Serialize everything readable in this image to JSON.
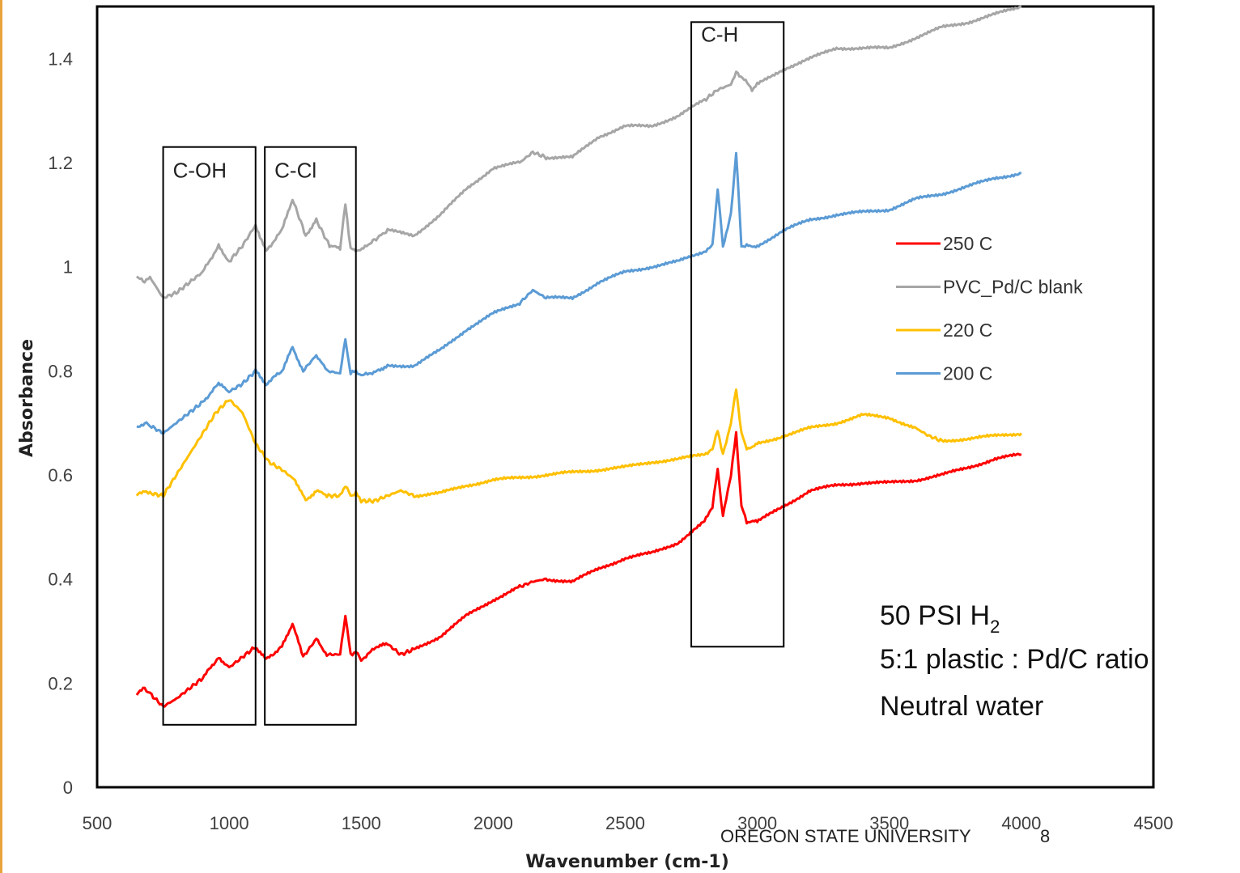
{
  "chart_data": {
    "type": "line",
    "xlabel": "Wavenumber (cm-1)",
    "ylabel": "Absorbance",
    "xlim": [
      500,
      4500
    ],
    "ylim": [
      0,
      1.5
    ],
    "xticks": [
      "500",
      "1000",
      "1500",
      "2000",
      "2500",
      "3000",
      "3500",
      "4000",
      "4500"
    ],
    "yticks": [
      "0",
      "0.2",
      "0.4",
      "0.6",
      "0.8",
      "1",
      "1.2",
      "1.4"
    ],
    "grid": false,
    "legend_position": "right",
    "series": [
      {
        "name": "250 C",
        "color": "#ff0000",
        "points": [
          [
            650,
            0.18
          ],
          [
            680,
            0.19
          ],
          [
            700,
            0.18
          ],
          [
            750,
            0.155
          ],
          [
            800,
            0.17
          ],
          [
            850,
            0.19
          ],
          [
            900,
            0.21
          ],
          [
            960,
            0.25
          ],
          [
            1000,
            0.23
          ],
          [
            1050,
            0.25
          ],
          [
            1100,
            0.27
          ],
          [
            1140,
            0.245
          ],
          [
            1200,
            0.27
          ],
          [
            1240,
            0.315
          ],
          [
            1280,
            0.25
          ],
          [
            1330,
            0.285
          ],
          [
            1370,
            0.255
          ],
          [
            1420,
            0.255
          ],
          [
            1440,
            0.33
          ],
          [
            1460,
            0.255
          ],
          [
            1480,
            0.26
          ],
          [
            1500,
            0.245
          ],
          [
            1560,
            0.27
          ],
          [
            1600,
            0.275
          ],
          [
            1650,
            0.255
          ],
          [
            1700,
            0.265
          ],
          [
            1800,
            0.29
          ],
          [
            1900,
            0.33
          ],
          [
            2000,
            0.36
          ],
          [
            2100,
            0.385
          ],
          [
            2150,
            0.395
          ],
          [
            2200,
            0.4
          ],
          [
            2300,
            0.395
          ],
          [
            2400,
            0.42
          ],
          [
            2500,
            0.44
          ],
          [
            2600,
            0.45
          ],
          [
            2700,
            0.47
          ],
          [
            2800,
            0.51
          ],
          [
            2830,
            0.54
          ],
          [
            2850,
            0.61
          ],
          [
            2870,
            0.52
          ],
          [
            2900,
            0.6
          ],
          [
            2920,
            0.68
          ],
          [
            2940,
            0.54
          ],
          [
            2960,
            0.51
          ],
          [
            3000,
            0.51
          ],
          [
            3100,
            0.54
          ],
          [
            3200,
            0.57
          ],
          [
            3300,
            0.58
          ],
          [
            3400,
            0.585
          ],
          [
            3500,
            0.585
          ],
          [
            3600,
            0.59
          ],
          [
            3700,
            0.6
          ],
          [
            3800,
            0.615
          ],
          [
            3900,
            0.63
          ],
          [
            4000,
            0.64
          ]
        ]
      },
      {
        "name": "PVC_Pd/C blank",
        "color": "#a6a6a6",
        "points": [
          [
            650,
            0.98
          ],
          [
            680,
            0.97
          ],
          [
            700,
            0.98
          ],
          [
            750,
            0.94
          ],
          [
            800,
            0.95
          ],
          [
            850,
            0.97
          ],
          [
            900,
            0.99
          ],
          [
            960,
            1.04
          ],
          [
            1000,
            1.01
          ],
          [
            1050,
            1.04
          ],
          [
            1100,
            1.08
          ],
          [
            1140,
            1.03
          ],
          [
            1200,
            1.07
          ],
          [
            1240,
            1.13
          ],
          [
            1290,
            1.06
          ],
          [
            1330,
            1.09
          ],
          [
            1380,
            1.04
          ],
          [
            1420,
            1.035
          ],
          [
            1440,
            1.12
          ],
          [
            1460,
            1.035
          ],
          [
            1480,
            1.03
          ],
          [
            1520,
            1.04
          ],
          [
            1600,
            1.07
          ],
          [
            1700,
            1.06
          ],
          [
            1800,
            1.1
          ],
          [
            1900,
            1.15
          ],
          [
            2000,
            1.19
          ],
          [
            2100,
            1.2
          ],
          [
            2150,
            1.22
          ],
          [
            2200,
            1.21
          ],
          [
            2300,
            1.21
          ],
          [
            2400,
            1.25
          ],
          [
            2500,
            1.27
          ],
          [
            2600,
            1.27
          ],
          [
            2700,
            1.29
          ],
          [
            2800,
            1.32
          ],
          [
            2850,
            1.34
          ],
          [
            2900,
            1.35
          ],
          [
            2920,
            1.375
          ],
          [
            2950,
            1.36
          ],
          [
            2980,
            1.34
          ],
          [
            3000,
            1.35
          ],
          [
            3100,
            1.38
          ],
          [
            3200,
            1.4
          ],
          [
            3300,
            1.42
          ],
          [
            3400,
            1.42
          ],
          [
            3500,
            1.42
          ],
          [
            3600,
            1.44
          ],
          [
            3700,
            1.46
          ],
          [
            3800,
            1.47
          ],
          [
            3900,
            1.485
          ],
          [
            4000,
            1.5
          ]
        ]
      },
      {
        "name": "220 C",
        "color": "#ffc000",
        "points": [
          [
            650,
            0.56
          ],
          [
            680,
            0.57
          ],
          [
            700,
            0.565
          ],
          [
            750,
            0.56
          ],
          [
            800,
            0.6
          ],
          [
            850,
            0.64
          ],
          [
            900,
            0.68
          ],
          [
            950,
            0.72
          ],
          [
            1000,
            0.745
          ],
          [
            1050,
            0.72
          ],
          [
            1100,
            0.66
          ],
          [
            1150,
            0.625
          ],
          [
            1200,
            0.61
          ],
          [
            1250,
            0.59
          ],
          [
            1290,
            0.55
          ],
          [
            1330,
            0.57
          ],
          [
            1370,
            0.56
          ],
          [
            1420,
            0.56
          ],
          [
            1440,
            0.58
          ],
          [
            1460,
            0.56
          ],
          [
            1480,
            0.565
          ],
          [
            1500,
            0.55
          ],
          [
            1550,
            0.55
          ],
          [
            1600,
            0.56
          ],
          [
            1650,
            0.57
          ],
          [
            1700,
            0.56
          ],
          [
            1800,
            0.565
          ],
          [
            1900,
            0.58
          ],
          [
            2000,
            0.59
          ],
          [
            2100,
            0.595
          ],
          [
            2200,
            0.6
          ],
          [
            2300,
            0.605
          ],
          [
            2400,
            0.61
          ],
          [
            2500,
            0.615
          ],
          [
            2600,
            0.625
          ],
          [
            2700,
            0.63
          ],
          [
            2800,
            0.64
          ],
          [
            2830,
            0.65
          ],
          [
            2850,
            0.685
          ],
          [
            2870,
            0.64
          ],
          [
            2900,
            0.7
          ],
          [
            2920,
            0.765
          ],
          [
            2940,
            0.68
          ],
          [
            2960,
            0.65
          ],
          [
            3000,
            0.66
          ],
          [
            3100,
            0.675
          ],
          [
            3200,
            0.69
          ],
          [
            3300,
            0.7
          ],
          [
            3400,
            0.715
          ],
          [
            3500,
            0.71
          ],
          [
            3600,
            0.69
          ],
          [
            3650,
            0.675
          ],
          [
            3700,
            0.665
          ],
          [
            3800,
            0.67
          ],
          [
            3900,
            0.675
          ],
          [
            4000,
            0.68
          ]
        ]
      },
      {
        "name": "200 C",
        "color": "#5b9bd5",
        "points": [
          [
            650,
            0.69
          ],
          [
            680,
            0.7
          ],
          [
            700,
            0.695
          ],
          [
            750,
            0.68
          ],
          [
            800,
            0.7
          ],
          [
            850,
            0.72
          ],
          [
            900,
            0.74
          ],
          [
            960,
            0.775
          ],
          [
            1000,
            0.76
          ],
          [
            1050,
            0.775
          ],
          [
            1100,
            0.8
          ],
          [
            1140,
            0.775
          ],
          [
            1200,
            0.8
          ],
          [
            1240,
            0.845
          ],
          [
            1280,
            0.8
          ],
          [
            1330,
            0.83
          ],
          [
            1370,
            0.8
          ],
          [
            1420,
            0.795
          ],
          [
            1440,
            0.86
          ],
          [
            1460,
            0.795
          ],
          [
            1480,
            0.8
          ],
          [
            1500,
            0.79
          ],
          [
            1560,
            0.8
          ],
          [
            1600,
            0.81
          ],
          [
            1700,
            0.81
          ],
          [
            1800,
            0.84
          ],
          [
            1900,
            0.88
          ],
          [
            2000,
            0.91
          ],
          [
            2100,
            0.93
          ],
          [
            2150,
            0.955
          ],
          [
            2200,
            0.94
          ],
          [
            2300,
            0.94
          ],
          [
            2400,
            0.97
          ],
          [
            2500,
            0.99
          ],
          [
            2600,
            1.0
          ],
          [
            2700,
            1.01
          ],
          [
            2800,
            1.03
          ],
          [
            2830,
            1.04
          ],
          [
            2850,
            1.15
          ],
          [
            2870,
            1.04
          ],
          [
            2900,
            1.1
          ],
          [
            2920,
            1.22
          ],
          [
            2940,
            1.04
          ],
          [
            2960,
            1.04
          ],
          [
            3000,
            1.04
          ],
          [
            3100,
            1.07
          ],
          [
            3200,
            1.09
          ],
          [
            3300,
            1.1
          ],
          [
            3400,
            1.105
          ],
          [
            3500,
            1.11
          ],
          [
            3600,
            1.13
          ],
          [
            3700,
            1.14
          ],
          [
            3800,
            1.155
          ],
          [
            3900,
            1.17
          ],
          [
            4000,
            1.18
          ]
        ]
      }
    ],
    "regions": [
      {
        "label": "C-OH",
        "x": [
          750,
          1100
        ],
        "y": [
          0.12,
          1.23
        ]
      },
      {
        "label": "C-Cl",
        "x": [
          1135,
          1480
        ],
        "y": [
          0.12,
          1.23
        ]
      },
      {
        "label": "C-H",
        "x": [
          2750,
          3100
        ],
        "y": [
          0.27,
          1.47
        ]
      }
    ],
    "annotation": {
      "line1_main": "50 PSI H",
      "line1_sub": "2",
      "line2": "5:1 plastic : Pd/C ratio",
      "line3": "Neutral water"
    }
  },
  "footer": {
    "org": "OREGON STATE UNIVERSITY",
    "page": "8"
  }
}
